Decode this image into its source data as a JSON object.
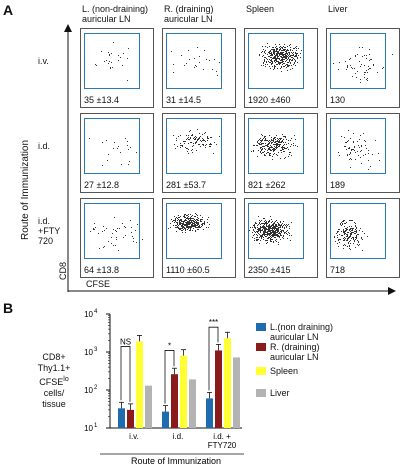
{
  "panel_a": {
    "letter": "A",
    "columns": [
      "L. (non-draining)\nauricular LN",
      "R. (draining)\nauricular LN",
      "Spleen",
      "Liver"
    ],
    "rows": [
      "i.v.",
      "i.d.",
      "i.d.\n+FTY\n720"
    ],
    "y_axis_label": "Route of Immunization",
    "cd8_label": "CD8",
    "cfse_label": "CFSE",
    "counts": [
      [
        "35 ±13.4",
        "31 ±14.5",
        "1920 ±460",
        "130"
      ],
      [
        "27 ±12.8",
        "281 ±53.7",
        "821 ±262",
        "189"
      ],
      [
        "64 ±13.8",
        "1110 ±60.5",
        "2350 ±415",
        "718"
      ]
    ]
  },
  "panel_b": {
    "letter": "B",
    "ylabel": "CD8+\nThy1.1+\nCFSElo\ncells/\ntissue",
    "ylabel_lines": [
      "CD8+",
      "Thy1.1+",
      "CFSE",
      "cells/",
      "tissue"
    ],
    "ylabel_sup": "lo",
    "xlabel": "Route of Immunization",
    "yticks": [
      "10",
      "10",
      "10",
      "10"
    ],
    "ytick_exp": [
      "1",
      "2",
      "3",
      "4"
    ],
    "significance": [
      "NS",
      "*",
      "***"
    ],
    "chart_data": {
      "type": "bar",
      "scale": "log",
      "ylim": [
        10,
        10000
      ],
      "categories": [
        "i.v.",
        "i.d.",
        "i.d. +\nFTY720"
      ],
      "series": [
        {
          "name": "L.(non draining)\nauricular LN",
          "color": "#1f6bb0",
          "values": [
            33,
            27,
            60
          ]
        },
        {
          "name": "R. (draining)\nauricular LN",
          "color": "#8b1a1a",
          "values": [
            30,
            260,
            1100
          ]
        },
        {
          "name": "Spleen",
          "color": "#ffff33",
          "values": [
            1900,
            800,
            2300
          ]
        },
        {
          "name": "Liver",
          "color": "#b3b3b3",
          "values": [
            130,
            190,
            720
          ]
        }
      ]
    }
  }
}
